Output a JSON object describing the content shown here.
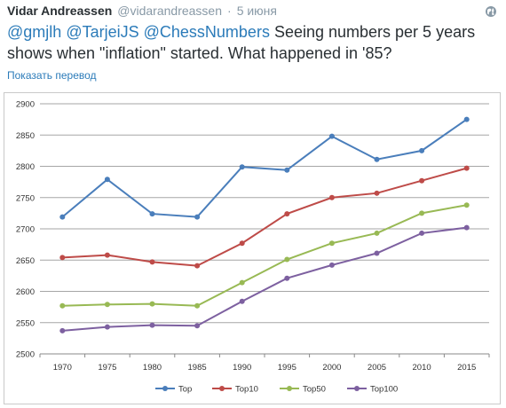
{
  "tweet": {
    "author_name": "Vidar Andreassen",
    "author_handle": "@vidarandreassen",
    "separator": "·",
    "timestamp": "5 июня",
    "mentions": [
      "@gmjlh",
      "@TarjeiJS",
      "@ChessNumbers"
    ],
    "text": "Seeing numbers per 5 years shows when \"inflation\" started. What happened in '85?",
    "translate_label": "Показать перевод"
  },
  "icons": {
    "globe": "globe-icon"
  },
  "colors": {
    "link": "#2b7bb9",
    "muted": "#8899a6",
    "grid": "#a0a0a0"
  },
  "chart_data": {
    "type": "line",
    "title": "",
    "xlabel": "",
    "ylabel": "",
    "x": [
      "1970",
      "1975",
      "1980",
      "1985",
      "1990",
      "1995",
      "2000",
      "2005",
      "2010",
      "2015"
    ],
    "ylim": [
      2500,
      2900
    ],
    "yticks": [
      2500,
      2550,
      2600,
      2650,
      2700,
      2750,
      2800,
      2850,
      2900
    ],
    "grid": true,
    "legend": "bottom",
    "series": [
      {
        "name": "Top",
        "color": "#4a7ebb",
        "values": [
          2719,
          2779,
          2724,
          2719,
          2799,
          2794,
          2848,
          2811,
          2825,
          2875
        ]
      },
      {
        "name": "Top10",
        "color": "#be4b48",
        "values": [
          2654,
          2658,
          2647,
          2641,
          2677,
          2724,
          2750,
          2757,
          2777,
          2797
        ]
      },
      {
        "name": "Top50",
        "color": "#98b954",
        "values": [
          2577,
          2579,
          2580,
          2577,
          2614,
          2651,
          2677,
          2693,
          2725,
          2738
        ]
      },
      {
        "name": "Top100",
        "color": "#7d60a0",
        "values": [
          2537,
          2543,
          2546,
          2545,
          2584,
          2621,
          2642,
          2661,
          2693,
          2702
        ]
      }
    ]
  }
}
